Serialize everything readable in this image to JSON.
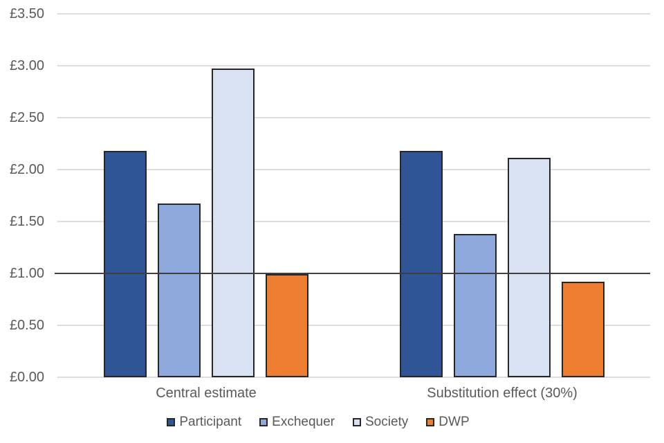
{
  "chart_data": {
    "type": "bar",
    "title": "",
    "categories": [
      "Central estimate",
      "Substitution effect (30%)"
    ],
    "series": [
      {
        "name": "Participant",
        "color": "#2F5597",
        "values": [
          2.18,
          2.18
        ]
      },
      {
        "name": "Exchequer",
        "color": "#8EA9DB",
        "values": [
          1.67,
          1.38
        ]
      },
      {
        "name": "Society",
        "color": "#D9E2F3",
        "values": [
          2.97,
          2.11
        ]
      },
      {
        "name": "DWP",
        "color": "#ED7D31",
        "values": [
          0.99,
          0.92
        ]
      }
    ],
    "y_axis": {
      "min": 0,
      "max": 3.5,
      "step": 0.5,
      "tick_labels": [
        "£3.50",
        "£3.00",
        "£2.50",
        "£2.00",
        "£1.50",
        "£1.00",
        "£0.50",
        "£0.00"
      ],
      "currency_format": "£0.00"
    },
    "reference_line": {
      "value": 1.0,
      "color": "#3F3F3F"
    },
    "grid": true,
    "legend_position": "bottom",
    "colors": {
      "bar_border": "#262626",
      "gridline": "#DCDCDC",
      "text": "#595959",
      "background": "#FFFFFF"
    }
  }
}
